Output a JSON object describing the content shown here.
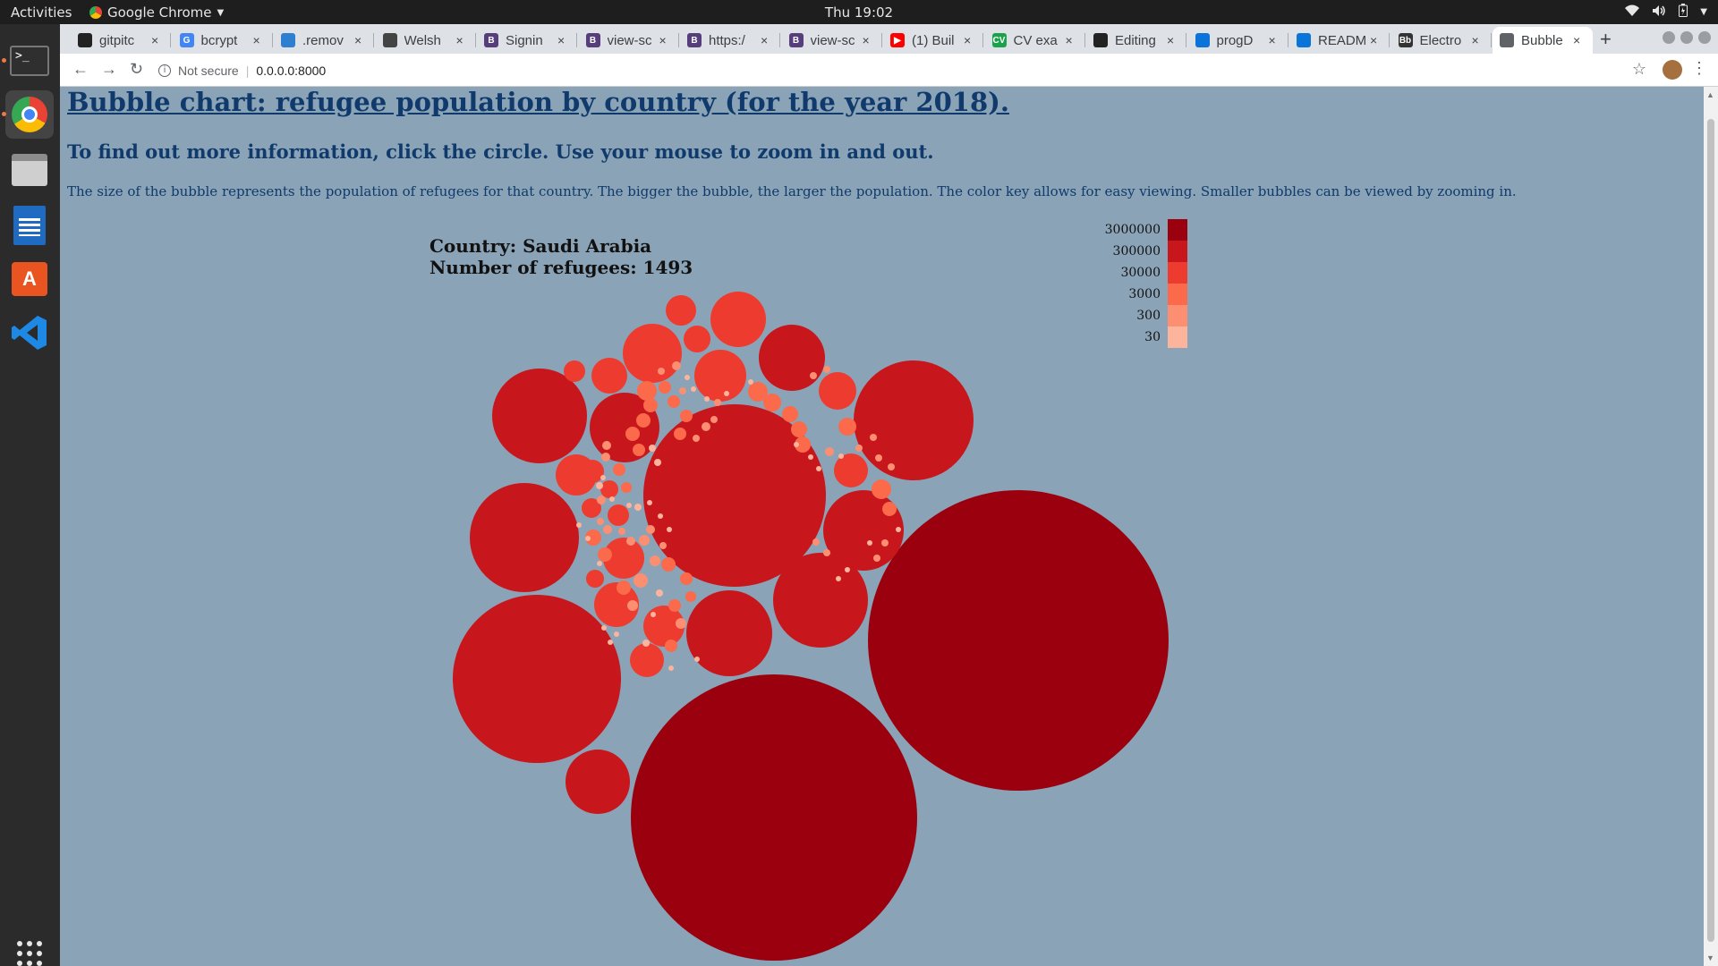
{
  "topbar": {
    "activities": "Activities",
    "app_name": "Google Chrome",
    "clock": "Thu 19:02"
  },
  "dock": {
    "items": [
      {
        "name": "terminal-icon",
        "color": "#2f2f2f"
      },
      {
        "name": "chrome-icon",
        "color": "#4285f4"
      },
      {
        "name": "files-icon",
        "color": "#c9c9c9"
      },
      {
        "name": "writer-icon",
        "color": "#1f6bc1"
      },
      {
        "name": "software-center-icon",
        "color": "#e95420"
      },
      {
        "name": "vscode-icon",
        "color": "#1e88e5"
      }
    ]
  },
  "tabs": [
    {
      "label": "gitpitc",
      "icon": "github-icon",
      "fav_color": "#222222",
      "fav_text": ""
    },
    {
      "label": "bcrypt",
      "icon": "google-icon",
      "fav_color": "#4285f4",
      "fav_text": "G"
    },
    {
      "label": ".remov",
      "icon": "edge-icon",
      "fav_color": "#2f7fd1",
      "fav_text": ""
    },
    {
      "label": "Welsh",
      "icon": "site-icon",
      "fav_color": "#444444",
      "fav_text": ""
    },
    {
      "label": "Signin",
      "icon": "bootstrap-icon",
      "fav_color": "#563d7c",
      "fav_text": "B"
    },
    {
      "label": "view-sc",
      "icon": "bootstrap-icon",
      "fav_color": "#563d7c",
      "fav_text": "B"
    },
    {
      "label": "https:/",
      "icon": "bootstrap-icon",
      "fav_color": "#563d7c",
      "fav_text": "B"
    },
    {
      "label": "view-sc",
      "icon": "bootstrap-icon",
      "fav_color": "#563d7c",
      "fav_text": "B"
    },
    {
      "label": "(1) Buil",
      "icon": "youtube-icon",
      "fav_color": "#ff0000",
      "fav_text": "▶"
    },
    {
      "label": "CV exa",
      "icon": "cv-icon",
      "fav_color": "#1aa34a",
      "fav_text": "CV"
    },
    {
      "label": "Editing",
      "icon": "github-icon",
      "fav_color": "#222222",
      "fav_text": ""
    },
    {
      "label": "progD",
      "icon": "onedrive-icon",
      "fav_color": "#0a74d9",
      "fav_text": ""
    },
    {
      "label": "READM",
      "icon": "onedrive-icon",
      "fav_color": "#0a74d9",
      "fav_text": ""
    },
    {
      "label": "Electro",
      "icon": "blackboard-icon",
      "fav_color": "#333333",
      "fav_text": "Bb"
    },
    {
      "label": "Bubble",
      "icon": "globe-icon",
      "fav_color": "#5f6368",
      "fav_text": "",
      "active": true
    }
  ],
  "address": {
    "security": "Not secure",
    "url": "0.0.0.0:8000"
  },
  "page": {
    "title": "Bubble chart: refugee population by country (for the year 2018).",
    "subtitle": "To find out more information, click the circle. Use your mouse to zoom in and out.",
    "description": "The size of the bubble represents the population of refugees for that country. The bigger the bubble, the larger the population. The color key allows for easy viewing. Smaller bubbles can be viewed by zooming in.",
    "tooltip": {
      "country_line": "Country: Saudi Arabia",
      "count_line": "Number of refugees: 1493"
    }
  },
  "chart_data": {
    "type": "bubble",
    "legend": [
      {
        "label": "3000000",
        "color": "#9b000e"
      },
      {
        "label": "300000",
        "color": "#c8161d"
      },
      {
        "label": "30000",
        "color": "#ee3b2f"
      },
      {
        "label": "3000",
        "color": "#fb6a4a"
      },
      {
        "label": "300",
        "color": "#fc8f71"
      },
      {
        "label": "30",
        "color": "#fcb49c"
      }
    ],
    "legend_placement": "top-right"
  }
}
